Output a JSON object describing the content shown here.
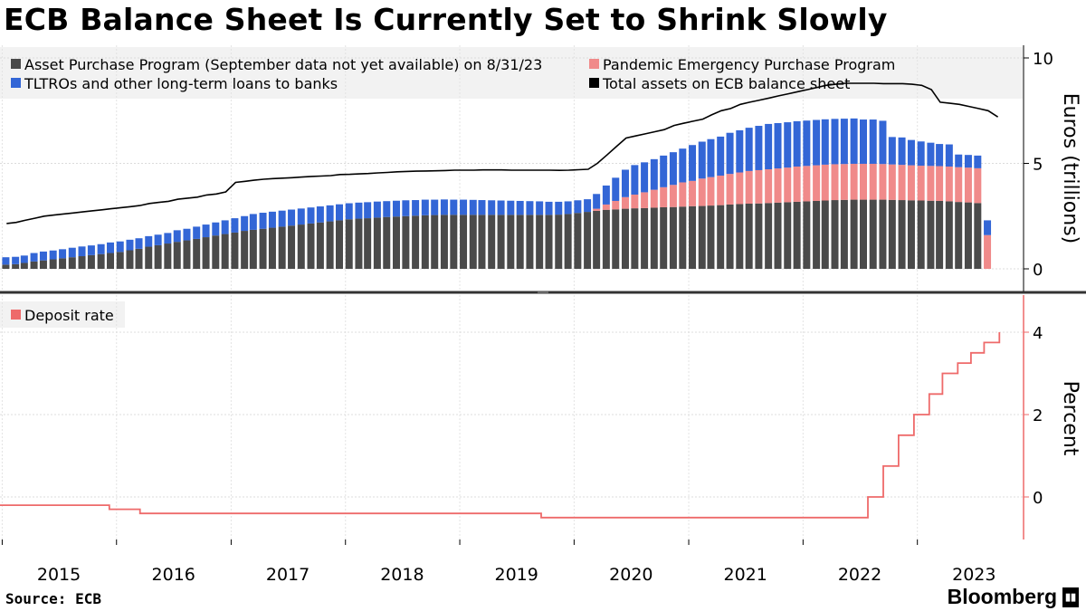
{
  "title": "ECB Balance Sheet Is Currently Set to Shrink Slowly",
  "source": "Source: ECB",
  "brand": "Bloomberg",
  "colors": {
    "app": "#4a4a4a",
    "pepp": "#f08a8a",
    "tltro": "#3366d6",
    "total": "#000000",
    "deposit": "#ee6a6a"
  },
  "chart_data": [
    {
      "type": "bar",
      "stacked": true,
      "ylabel": "Euros (trillions)",
      "ylim": [
        0,
        10
      ],
      "yticks": [
        0,
        5,
        10
      ],
      "legend": [
        {
          "name": "Asset Purchase Program (September data not yet available) on 8/31/23",
          "color": "#4a4a4a"
        },
        {
          "name": "Pandemic Emergency Purchase Program",
          "color": "#f08a8a"
        },
        {
          "name": "TLTROs and other long-term loans to banks",
          "color": "#3366d6"
        },
        {
          "name": "Total assets on ECB balance sheet",
          "color": "#000000"
        }
      ],
      "x": [
        "2015-01",
        "2015-02",
        "2015-03",
        "2015-04",
        "2015-05",
        "2015-06",
        "2015-07",
        "2015-08",
        "2015-09",
        "2015-10",
        "2015-11",
        "2015-12",
        "2016-01",
        "2016-02",
        "2016-03",
        "2016-04",
        "2016-05",
        "2016-06",
        "2016-07",
        "2016-08",
        "2016-09",
        "2016-10",
        "2016-11",
        "2016-12",
        "2017-01",
        "2017-02",
        "2017-03",
        "2017-04",
        "2017-05",
        "2017-06",
        "2017-07",
        "2017-08",
        "2017-09",
        "2017-10",
        "2017-11",
        "2017-12",
        "2018-01",
        "2018-02",
        "2018-03",
        "2018-04",
        "2018-05",
        "2018-06",
        "2018-07",
        "2018-08",
        "2018-09",
        "2018-10",
        "2018-11",
        "2018-12",
        "2019-01",
        "2019-02",
        "2019-03",
        "2019-04",
        "2019-05",
        "2019-06",
        "2019-07",
        "2019-08",
        "2019-09",
        "2019-10",
        "2019-11",
        "2019-12",
        "2020-01",
        "2020-02",
        "2020-03",
        "2020-04",
        "2020-05",
        "2020-06",
        "2020-07",
        "2020-08",
        "2020-09",
        "2020-10",
        "2020-11",
        "2020-12",
        "2021-01",
        "2021-02",
        "2021-03",
        "2021-04",
        "2021-05",
        "2021-06",
        "2021-07",
        "2021-08",
        "2021-09",
        "2021-10",
        "2021-11",
        "2021-12",
        "2022-01",
        "2022-02",
        "2022-03",
        "2022-04",
        "2022-05",
        "2022-06",
        "2022-07",
        "2022-08",
        "2022-09",
        "2022-10",
        "2022-11",
        "2022-12",
        "2023-01",
        "2023-02",
        "2023-03",
        "2023-04",
        "2023-05",
        "2023-06",
        "2023-07",
        "2023-08",
        "2023-09"
      ],
      "series": [
        {
          "name": "Asset Purchase Program (September data not yet available) on 8/31/23",
          "values": [
            0.2,
            0.22,
            0.28,
            0.35,
            0.4,
            0.45,
            0.5,
            0.55,
            0.6,
            0.65,
            0.7,
            0.75,
            0.8,
            0.88,
            0.95,
            1.05,
            1.12,
            1.2,
            1.28,
            1.35,
            1.42,
            1.5,
            1.58,
            1.65,
            1.72,
            1.8,
            1.85,
            1.9,
            1.95,
            2.0,
            2.05,
            2.1,
            2.15,
            2.2,
            2.25,
            2.3,
            2.35,
            2.38,
            2.4,
            2.43,
            2.46,
            2.48,
            2.5,
            2.52,
            2.54,
            2.55,
            2.56,
            2.56,
            2.56,
            2.56,
            2.56,
            2.56,
            2.56,
            2.56,
            2.56,
            2.56,
            2.56,
            2.56,
            2.57,
            2.6,
            2.65,
            2.7,
            2.75,
            2.8,
            2.82,
            2.85,
            2.87,
            2.88,
            2.9,
            2.92,
            2.93,
            2.95,
            2.97,
            2.98,
            3.0,
            3.02,
            3.05,
            3.07,
            3.09,
            3.1,
            3.12,
            3.14,
            3.16,
            3.18,
            3.2,
            3.22,
            3.24,
            3.26,
            3.27,
            3.28,
            3.28,
            3.28,
            3.28,
            3.27,
            3.26,
            3.25,
            3.24,
            3.23,
            3.22,
            3.2,
            3.17,
            3.15,
            3.12,
            0.0,
            0.0
          ]
        },
        {
          "name": "Pandemic Emergency Purchase Program",
          "values": [
            0,
            0,
            0,
            0,
            0,
            0,
            0,
            0,
            0,
            0,
            0,
            0,
            0,
            0,
            0,
            0,
            0,
            0,
            0,
            0,
            0,
            0,
            0,
            0,
            0,
            0,
            0,
            0,
            0,
            0,
            0,
            0,
            0,
            0,
            0,
            0,
            0,
            0,
            0,
            0,
            0,
            0,
            0,
            0,
            0,
            0,
            0,
            0,
            0,
            0,
            0,
            0,
            0,
            0,
            0,
            0,
            0,
            0,
            0,
            0,
            0,
            0,
            0.1,
            0.25,
            0.4,
            0.55,
            0.65,
            0.75,
            0.85,
            0.95,
            1.05,
            1.15,
            1.2,
            1.3,
            1.35,
            1.4,
            1.45,
            1.5,
            1.55,
            1.58,
            1.6,
            1.62,
            1.64,
            1.67,
            1.68,
            1.69,
            1.7,
            1.7,
            1.7,
            1.7,
            1.7,
            1.7,
            1.69,
            1.68,
            1.67,
            1.66,
            1.65,
            1.65,
            1.65,
            1.65,
            1.65,
            1.65,
            1.65,
            1.6,
            0.0
          ]
        },
        {
          "name": "TLTROs and other long-term loans to banks",
          "values": [
            0.35,
            0.35,
            0.35,
            0.4,
            0.42,
            0.42,
            0.43,
            0.45,
            0.46,
            0.46,
            0.47,
            0.5,
            0.5,
            0.5,
            0.5,
            0.5,
            0.5,
            0.5,
            0.55,
            0.55,
            0.58,
            0.6,
            0.62,
            0.65,
            0.68,
            0.7,
            0.75,
            0.76,
            0.76,
            0.76,
            0.76,
            0.76,
            0.76,
            0.76,
            0.76,
            0.76,
            0.76,
            0.76,
            0.76,
            0.76,
            0.75,
            0.75,
            0.75,
            0.74,
            0.74,
            0.73,
            0.73,
            0.72,
            0.72,
            0.71,
            0.7,
            0.69,
            0.68,
            0.67,
            0.66,
            0.65,
            0.64,
            0.62,
            0.61,
            0.6,
            0.6,
            0.6,
            0.7,
            0.9,
            1.1,
            1.3,
            1.4,
            1.42,
            1.45,
            1.5,
            1.55,
            1.6,
            1.7,
            1.75,
            1.8,
            1.85,
            1.95,
            2.0,
            2.05,
            2.1,
            2.15,
            2.15,
            2.15,
            2.15,
            2.15,
            2.15,
            2.15,
            2.15,
            2.15,
            2.15,
            2.1,
            2.1,
            2.05,
            1.3,
            1.3,
            1.2,
            1.15,
            1.1,
            1.05,
            1.05,
            0.6,
            0.6,
            0.6,
            0.7,
            0.0
          ]
        },
        {
          "name": "Total assets on ECB balance sheet",
          "type": "line",
          "values": [
            2.15,
            2.2,
            2.3,
            2.4,
            2.5,
            2.55,
            2.6,
            2.65,
            2.7,
            2.75,
            2.8,
            2.85,
            2.9,
            2.95,
            3.0,
            3.1,
            3.15,
            3.2,
            3.3,
            3.35,
            3.4,
            3.5,
            3.55,
            3.65,
            4.1,
            4.15,
            4.2,
            4.25,
            4.28,
            4.3,
            4.32,
            4.35,
            4.38,
            4.4,
            4.42,
            4.47,
            4.48,
            4.5,
            4.52,
            4.55,
            4.57,
            4.6,
            4.62,
            4.63,
            4.64,
            4.65,
            4.66,
            4.68,
            4.68,
            4.68,
            4.69,
            4.69,
            4.69,
            4.68,
            4.68,
            4.68,
            4.68,
            4.68,
            4.67,
            4.68,
            4.7,
            4.72,
            5.0,
            5.4,
            5.8,
            6.2,
            6.3,
            6.4,
            6.5,
            6.6,
            6.8,
            6.9,
            7.0,
            7.1,
            7.3,
            7.5,
            7.6,
            7.8,
            7.9,
            8.0,
            8.1,
            8.2,
            8.3,
            8.4,
            8.5,
            8.6,
            8.7,
            8.75,
            8.8,
            8.8,
            8.8,
            8.8,
            8.78,
            8.78,
            8.78,
            8.75,
            8.7,
            8.5,
            7.9,
            7.85,
            7.8,
            7.7,
            7.6,
            7.5,
            7.2
          ]
        }
      ]
    },
    {
      "type": "line",
      "ylabel": "Percent",
      "ylim": [
        -1,
        5
      ],
      "yticks": [
        0,
        2,
        4
      ],
      "legend": [
        {
          "name": "Deposit rate",
          "color": "#ee6a6a"
        }
      ],
      "x_range": [
        "2014-09",
        "2023-09"
      ],
      "xticks": [
        "2015",
        "2016",
        "2017",
        "2018",
        "2019",
        "2020",
        "2021",
        "2022",
        "2023"
      ],
      "series": [
        {
          "name": "Deposit rate",
          "points": [
            [
              "2014-09-10",
              -0.2
            ],
            [
              "2015-12-09",
              -0.2
            ],
            [
              "2015-12-09",
              -0.3
            ],
            [
              "2016-03-16",
              -0.3
            ],
            [
              "2016-03-16",
              -0.4
            ],
            [
              "2019-09-18",
              -0.4
            ],
            [
              "2019-09-18",
              -0.5
            ],
            [
              "2022-07-27",
              -0.5
            ],
            [
              "2022-07-27",
              0.0
            ],
            [
              "2022-09-14",
              0.0
            ],
            [
              "2022-09-14",
              0.75
            ],
            [
              "2022-11-02",
              0.75
            ],
            [
              "2022-11-02",
              1.5
            ],
            [
              "2022-12-21",
              1.5
            ],
            [
              "2022-12-21",
              2.0
            ],
            [
              "2023-02-08",
              2.0
            ],
            [
              "2023-02-08",
              2.5
            ],
            [
              "2023-03-22",
              2.5
            ],
            [
              "2023-03-22",
              3.0
            ],
            [
              "2023-05-10",
              3.0
            ],
            [
              "2023-05-10",
              3.25
            ],
            [
              "2023-06-21",
              3.25
            ],
            [
              "2023-06-21",
              3.5
            ],
            [
              "2023-08-02",
              3.5
            ],
            [
              "2023-08-02",
              3.75
            ],
            [
              "2023-09-20",
              3.75
            ],
            [
              "2023-09-20",
              4.0
            ]
          ]
        }
      ]
    }
  ]
}
